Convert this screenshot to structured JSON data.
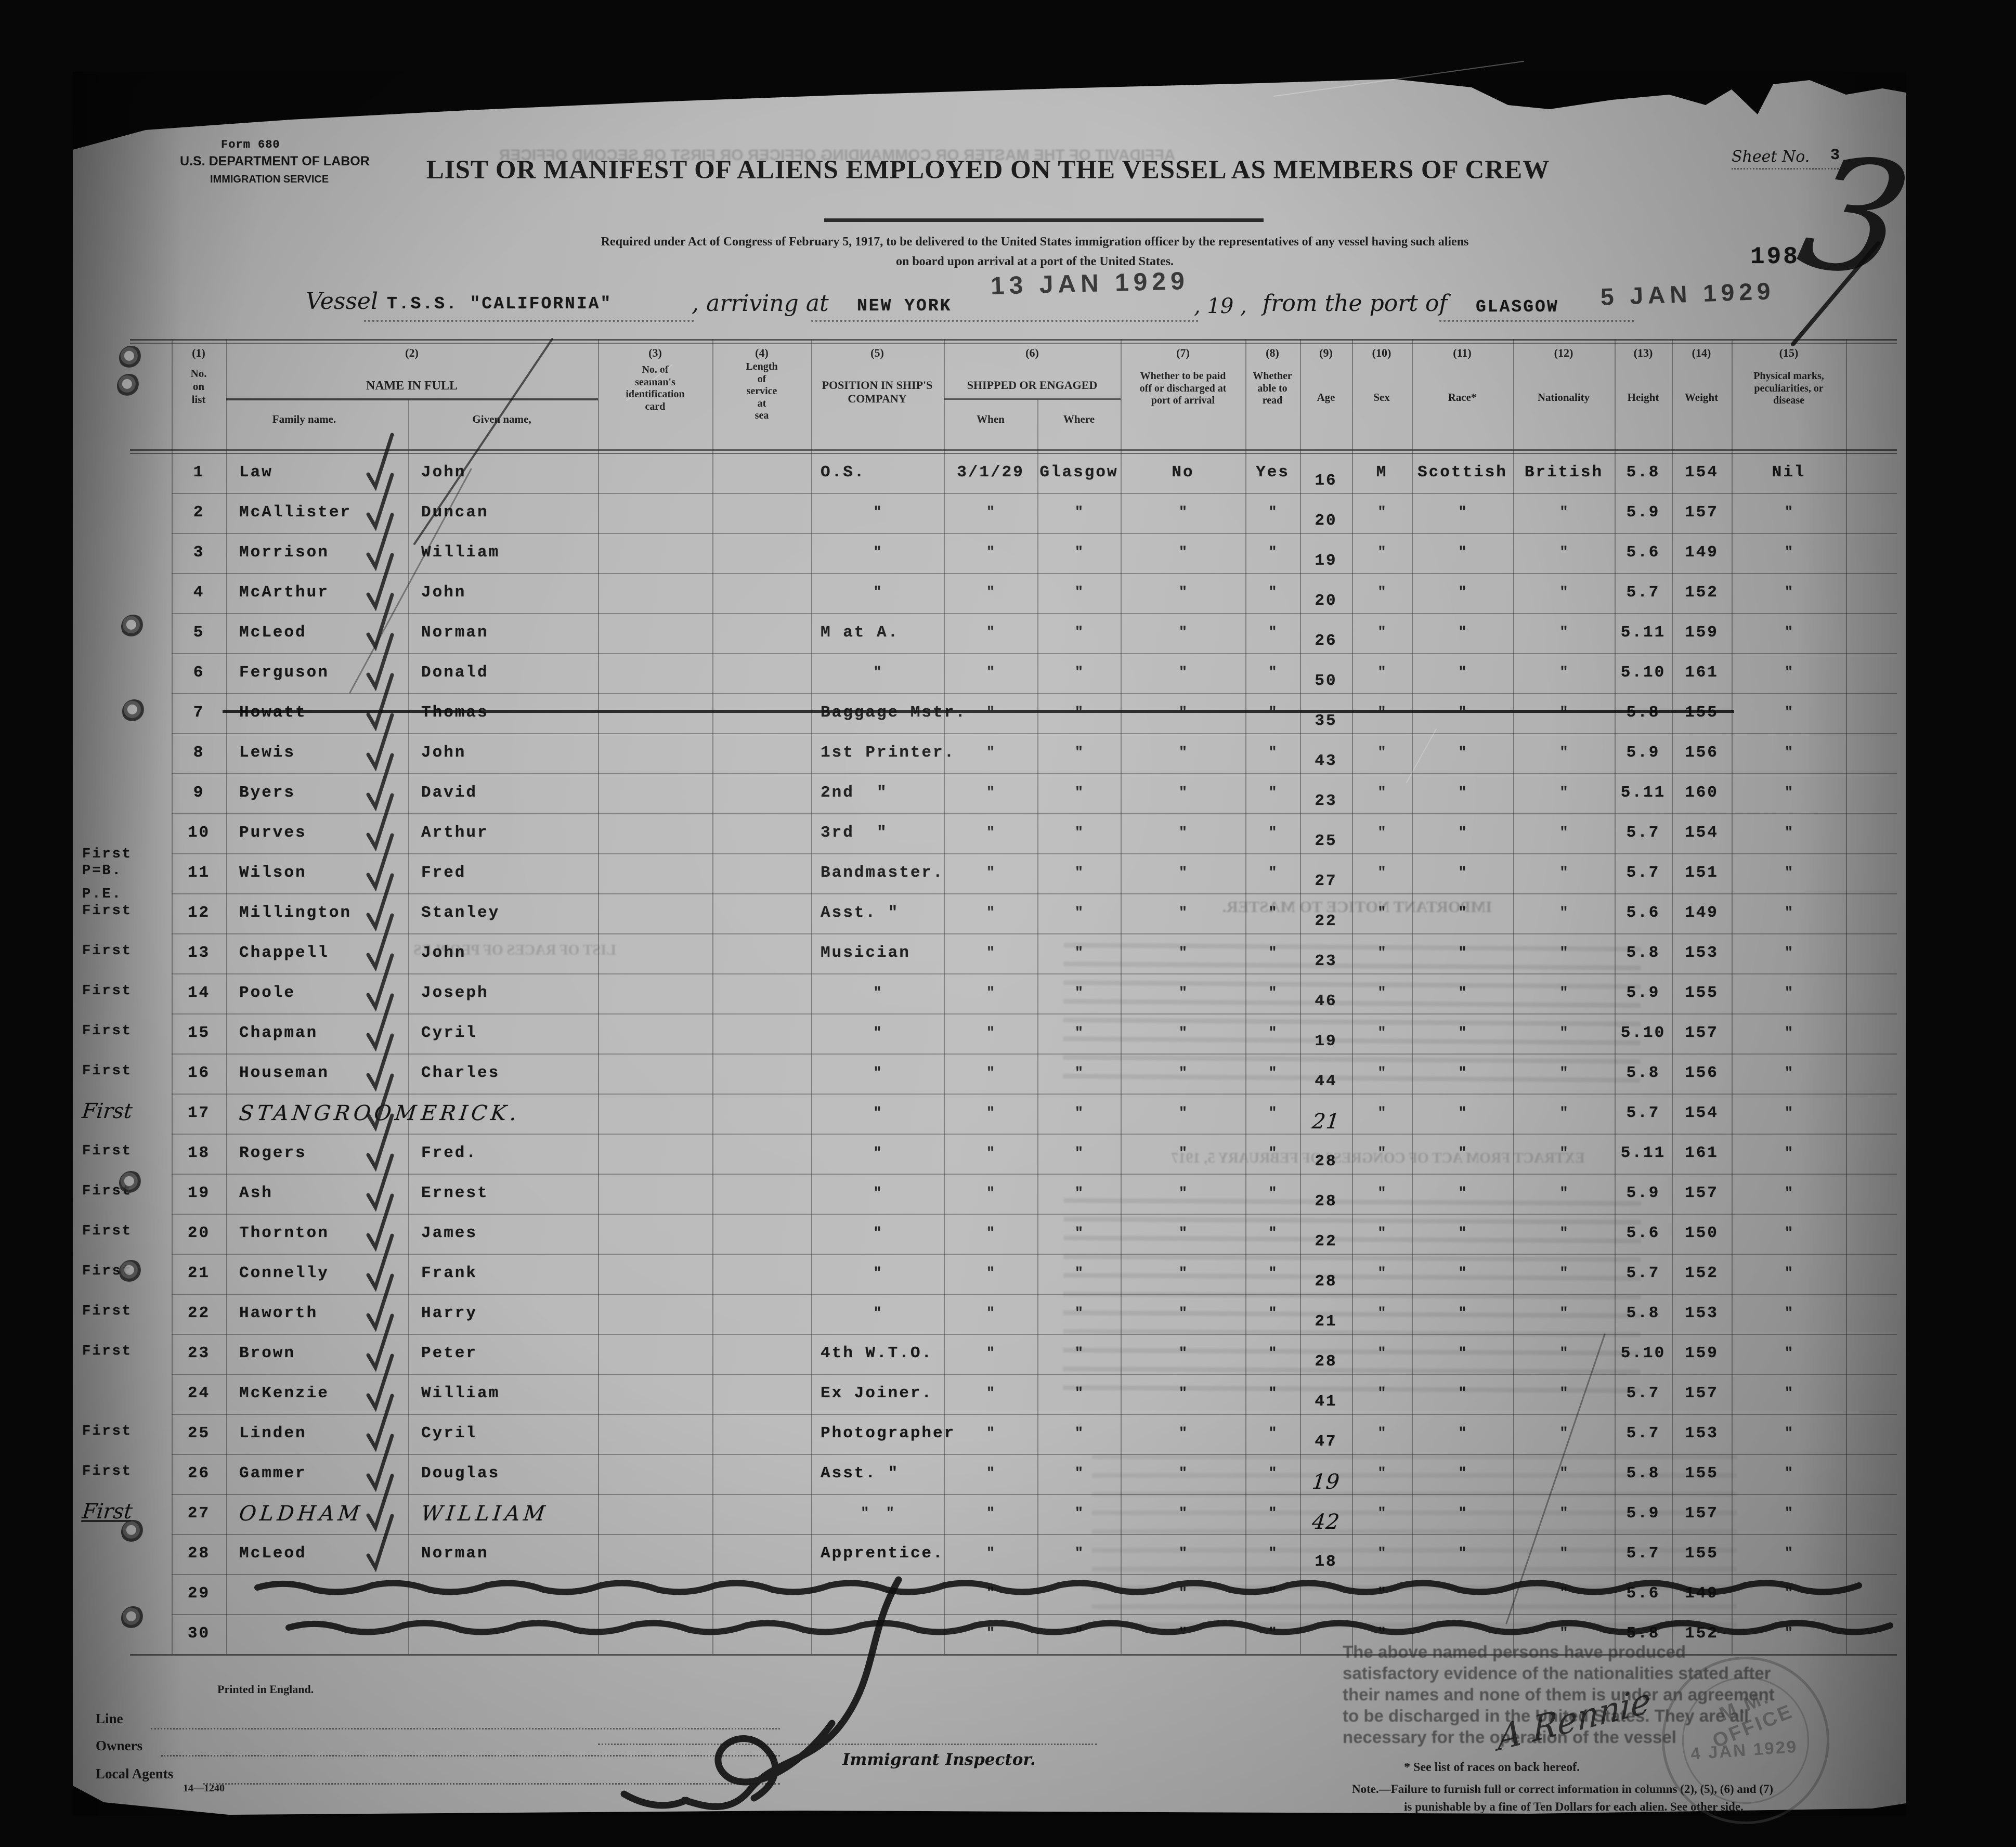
{
  "form": {
    "form_no": "Form 680",
    "department": "U.S. DEPARTMENT OF LABOR",
    "service": "IMMIGRATION SERVICE"
  },
  "header": {
    "title": "LIST OR MANIFEST OF ALIENS EMPLOYED ON THE VESSEL AS MEMBERS OF CREW",
    "subtitle_line1": "Required under Act of Congress of February 5, 1917, to be delivered to the United States immigration officer by the representatives of any vessel having such aliens",
    "subtitle_line2": "on board upon arrival at a port of the United States.",
    "sheet_label": "Sheet No.",
    "sheet_no": "3",
    "page_number": "198",
    "big_handwritten_digit": "3"
  },
  "vessel_line": {
    "vessel_label": "Vessel",
    "vessel_name": "T.S.S. \"CALIFORNIA\"",
    "arriving_label": ", arriving at",
    "port_of_arrival": "NEW YORK",
    "arrival_date_stamp": "13 JAN 1929",
    "year_label": ", 19 ,",
    "from_port_label": "from the port of",
    "port_of_departure": "GLASGOW",
    "departure_date_stamp": "5 JAN 1929"
  },
  "table": {
    "ditto": "″",
    "column_numbers": [
      "(1)",
      "(2)",
      "(3)",
      "(4)",
      "(5)",
      "(6)",
      "(7)",
      "(8)",
      "(9)",
      "(10)",
      "(11)",
      "(12)",
      "(13)",
      "(14)",
      "(15)"
    ],
    "columns": {
      "no": "No.\non\nlist",
      "name": "NAME IN FULL",
      "family": "Family name.",
      "given": "Given name,",
      "card": "No. of\nseaman's\nidentification\ncard",
      "service": "Length\nof\nservice\nat\nsea",
      "position": "POSITION IN SHIP'S\nCOMPANY",
      "shipped": "SHIPPED OR ENGAGED",
      "when": "When",
      "where": "Where",
      "paid": "Whether to be paid\noff or discharged at\nport of arrival",
      "read": "Whether\nable to\nread",
      "age": "Age",
      "sex": "Sex",
      "race": "Race*",
      "nationality": "Nationality",
      "height": "Height",
      "weight": "Weight",
      "marks": "Physical marks,\npeculiarities, or\ndisease"
    },
    "rows": [
      {
        "no": "1",
        "family": "Law",
        "given": "John",
        "position": "O.S.",
        "when": "3/1/29",
        "where": "Glasgow",
        "paid": "No",
        "read": "Yes",
        "age": "16",
        "sex": "M",
        "race": "Scottish",
        "nationality": "British",
        "height": "5.8",
        "weight": "154",
        "marks": "Nil"
      },
      {
        "no": "2",
        "family": "McAllister",
        "given": "Duncan",
        "position": "″",
        "when": "″",
        "where": "″",
        "paid": "″",
        "read": "″",
        "age": "20",
        "sex": "″",
        "race": "″",
        "nationality": "″",
        "height": "5.9",
        "weight": "157",
        "marks": "″"
      },
      {
        "no": "3",
        "family": "Morrison",
        "given": "William",
        "position": "″",
        "when": "″",
        "where": "″",
        "paid": "″",
        "read": "″",
        "age": "19",
        "sex": "″",
        "race": "″",
        "nationality": "″",
        "height": "5.6",
        "weight": "149",
        "marks": "″"
      },
      {
        "no": "4",
        "family": "McArthur",
        "given": "John",
        "position": "″",
        "when": "″",
        "where": "″",
        "paid": "″",
        "read": "″",
        "age": "20",
        "sex": "″",
        "race": "″",
        "nationality": "″",
        "height": "5.7",
        "weight": "152",
        "marks": "″"
      },
      {
        "no": "5",
        "family": "McLeod",
        "given": "Norman",
        "position": "M at A.",
        "when": "″",
        "where": "″",
        "paid": "″",
        "read": "″",
        "age": "26",
        "sex": "″",
        "race": "″",
        "nationality": "″",
        "height": "5.11",
        "weight": "159",
        "marks": "″"
      },
      {
        "no": "6",
        "family": "Ferguson",
        "given": "Donald",
        "position": "″",
        "when": "″",
        "where": "″",
        "paid": "″",
        "read": "″",
        "age": "50",
        "sex": "″",
        "race": "″",
        "nationality": "″",
        "height": "5.10",
        "weight": "161",
        "marks": "″"
      },
      {
        "no": "7",
        "family": "Howatt",
        "given": "Thomas",
        "position": "Baggage Mstr.",
        "when": "″",
        "where": "″",
        "paid": "″",
        "read": "″",
        "age": "35",
        "sex": "″",
        "race": "″",
        "nationality": "″",
        "height": "5.8",
        "weight": "155",
        "marks": "″",
        "struck": true
      },
      {
        "no": "8",
        "family": "Lewis",
        "given": "John",
        "position": "1st Printer.",
        "when": "″",
        "where": "″",
        "paid": "″",
        "read": "″",
        "age": "43",
        "sex": "″",
        "race": "″",
        "nationality": "″",
        "height": "5.9",
        "weight": "156",
        "marks": "″"
      },
      {
        "no": "9",
        "family": "Byers",
        "given": "David",
        "position": "2nd  ″",
        "when": "″",
        "where": "″",
        "paid": "″",
        "read": "″",
        "age": "23",
        "sex": "″",
        "race": "″",
        "nationality": "″",
        "height": "5.11",
        "weight": "160",
        "marks": "″"
      },
      {
        "no": "10",
        "family": "Purves",
        "given": "Arthur",
        "position": "3rd  ″",
        "when": "″",
        "where": "″",
        "paid": "″",
        "read": "″",
        "age": "25",
        "sex": "″",
        "race": "″",
        "nationality": "″",
        "height": "5.7",
        "weight": "154",
        "marks": "″"
      },
      {
        "no": "11",
        "margin": "First\nP=B.",
        "family": "Wilson",
        "given": "Fred",
        "position": "Bandmaster.",
        "when": "″",
        "where": "″",
        "paid": "″",
        "read": "″",
        "age": "27",
        "sex": "″",
        "race": "″",
        "nationality": "″",
        "height": "5.7",
        "weight": "151",
        "marks": "″"
      },
      {
        "no": "12",
        "margin": "P.E.\nFirst",
        "family": "Millington",
        "given": "Stanley",
        "position": "Asst. ″",
        "when": "″",
        "where": "″",
        "paid": "″",
        "read": "″",
        "age": "22",
        "sex": "″",
        "race": "″",
        "nationality": "″",
        "height": "5.6",
        "weight": "149",
        "marks": "″"
      },
      {
        "no": "13",
        "margin": "First",
        "family": "Chappell",
        "given": "John",
        "position": "Musician",
        "when": "″",
        "where": "″",
        "paid": "″",
        "read": "″",
        "age": "23",
        "sex": "″",
        "race": "″",
        "nationality": "″",
        "height": "5.8",
        "weight": "153",
        "marks": "″"
      },
      {
        "no": "14",
        "margin": "First",
        "family": "Poole",
        "given": "Joseph",
        "position": "″",
        "when": "″",
        "where": "″",
        "paid": "″",
        "read": "″",
        "age": "46",
        "sex": "″",
        "race": "″",
        "nationality": "″",
        "height": "5.9",
        "weight": "155",
        "marks": "″"
      },
      {
        "no": "15",
        "margin": "First",
        "family": "Chapman",
        "given": "Cyril",
        "position": "″",
        "when": "″",
        "where": "″",
        "paid": "″",
        "read": "″",
        "age": "19",
        "sex": "″",
        "race": "″",
        "nationality": "″",
        "height": "5.10",
        "weight": "157",
        "marks": "″"
      },
      {
        "no": "16",
        "margin": "First",
        "family": "Houseman",
        "given": "Charles",
        "position": "″",
        "when": "″",
        "where": "″",
        "paid": "″",
        "read": "″",
        "age": "44",
        "sex": "″",
        "race": "″",
        "nationality": "″",
        "height": "5.8",
        "weight": "156",
        "marks": "″"
      },
      {
        "no": "17",
        "margin": "First",
        "family": "STANGROOM",
        "given": "ERICK.",
        "position": "″",
        "when": "″",
        "where": "″",
        "paid": "″",
        "read": "″",
        "age": "21",
        "sex": "″",
        "race": "″",
        "nationality": "″",
        "height": "5.7",
        "weight": "154",
        "marks": "″",
        "hand": [
          "margin",
          "family",
          "given",
          "age"
        ]
      },
      {
        "no": "18",
        "margin": "First",
        "family": "Rogers",
        "given": "Fred.",
        "position": "″",
        "when": "″",
        "where": "″",
        "paid": "″",
        "read": "″",
        "age": "28",
        "sex": "″",
        "race": "″",
        "nationality": "″",
        "height": "5.11",
        "weight": "161",
        "marks": "″"
      },
      {
        "no": "19",
        "margin": "First",
        "family": "Ash",
        "given": "Ernest",
        "position": "″",
        "when": "″",
        "where": "″",
        "paid": "″",
        "read": "″",
        "age": "28",
        "sex": "″",
        "race": "″",
        "nationality": "″",
        "height": "5.9",
        "weight": "157",
        "marks": "″"
      },
      {
        "no": "20",
        "margin": "First",
        "family": "Thornton",
        "given": "James",
        "position": "″",
        "when": "″",
        "where": "″",
        "paid": "″",
        "read": "″",
        "age": "22",
        "sex": "″",
        "race": "″",
        "nationality": "″",
        "height": "5.6",
        "weight": "150",
        "marks": "″"
      },
      {
        "no": "21",
        "margin": "First",
        "family": "Connelly",
        "given": "Frank",
        "position": "″",
        "when": "″",
        "where": "″",
        "paid": "″",
        "read": "″",
        "age": "28",
        "sex": "″",
        "race": "″",
        "nationality": "″",
        "height": "5.7",
        "weight": "152",
        "marks": "″"
      },
      {
        "no": "22",
        "margin": "First",
        "family": "Haworth",
        "given": "Harry",
        "position": "″",
        "when": "″",
        "where": "″",
        "paid": "″",
        "read": "″",
        "age": "21",
        "sex": "″",
        "race": "″",
        "nationality": "″",
        "height": "5.8",
        "weight": "153",
        "marks": "″"
      },
      {
        "no": "23",
        "margin": "First",
        "family": "Brown",
        "given": "Peter",
        "position": "4th W.T.O.",
        "when": "″",
        "where": "″",
        "paid": "″",
        "read": "″",
        "age": "28",
        "sex": "″",
        "race": "″",
        "nationality": "″",
        "height": "5.10",
        "weight": "159",
        "marks": "″"
      },
      {
        "no": "24",
        "family": "McKenzie",
        "given": "William",
        "position": "Ex Joiner.",
        "when": "″",
        "where": "″",
        "paid": "″",
        "read": "″",
        "age": "41",
        "sex": "″",
        "race": "″",
        "nationality": "″",
        "height": "5.7",
        "weight": "157",
        "marks": "″"
      },
      {
        "no": "25",
        "margin": "First",
        "family": "Linden",
        "given": "Cyril",
        "position": "Photographer",
        "when": "″",
        "where": "″",
        "paid": "″",
        "read": "″",
        "age": "47",
        "sex": "″",
        "race": "″",
        "nationality": "″",
        "height": "5.7",
        "weight": "153",
        "marks": "″"
      },
      {
        "no": "26",
        "margin": "First",
        "family": "Gammer",
        "given": "Douglas",
        "position": "Asst. ″",
        "when": "″",
        "where": "″",
        "paid": "″",
        "read": "″",
        "age": "19",
        "sex": "″",
        "race": "″",
        "nationality": "″",
        "height": "5.8",
        "weight": "155",
        "marks": "″",
        "hand": [
          "age"
        ]
      },
      {
        "no": "27",
        "margin": "First",
        "family": "OLDHAM",
        "given": "WILLIAM",
        "position": "″  ″",
        "when": "″",
        "where": "″",
        "paid": "″",
        "read": "″",
        "age": "42",
        "sex": "″",
        "race": "″",
        "nationality": "″",
        "height": "5.9",
        "weight": "157",
        "marks": "″",
        "hand": [
          "margin",
          "family",
          "given",
          "age"
        ],
        "margin_underline": true
      },
      {
        "no": "28",
        "family": "McLeod",
        "given": "Norman",
        "position": "Apprentice.",
        "when": "″",
        "where": "″",
        "paid": "″",
        "read": "″",
        "age": "18",
        "sex": "″",
        "race": "″",
        "nationality": "″",
        "height": "5.7",
        "weight": "155",
        "marks": "″"
      },
      {
        "no": "29",
        "when": "″",
        "paid": "″",
        "read": "″",
        "sex": "″",
        "nationality": "″",
        "height": "5.6",
        "weight": "149",
        "marks": "″",
        "wavy": true
      },
      {
        "no": "30",
        "when": "″",
        "where": "″",
        "paid": "″",
        "read": "″",
        "sex": "″",
        "nationality": "″",
        "height": "5.8",
        "weight": "152",
        "marks": "″",
        "wavy": true
      }
    ]
  },
  "footer": {
    "printed_in": "Printed in England.",
    "line_label": "Line",
    "owners_label": "Owners",
    "agents_label": "Local Agents",
    "agents_code": "14—1240",
    "inspector_label": "Immigrant Inspector.",
    "declaration": "The above named persons have produced satisfactory evidence of the nationalities stated after their names and none of them is under an agreement to be discharged in the United States.  They are all necessary for the operation of the vessel",
    "races_note": "* See list of races on back hereof.",
    "note_line1": "Note.—Failure to furnish full or correct information in columns (2), (5), (6) and (7)",
    "note_line2": "is punishable by a fine of Ten Dollars for each alien.  See other side.",
    "signature": "A Rennie"
  },
  "stamps": {
    "office_stamp_name": "M.M. OFFICE",
    "office_stamp_date": "4 JAN 1929"
  },
  "bleed_through": {
    "affidavit": "AFFIDAVIT OF THE MASTER OR COMMANDING OFFICER OR FIRST OR SECOND OFFICER",
    "notice": "IMPORTANT NOTICE TO MASTER.",
    "races_list": "LIST OF RACES OF PEOPLES",
    "extract": "EXTRACT FROM ACT OF CONGRESS OF FEBRUARY 5, 1917"
  }
}
